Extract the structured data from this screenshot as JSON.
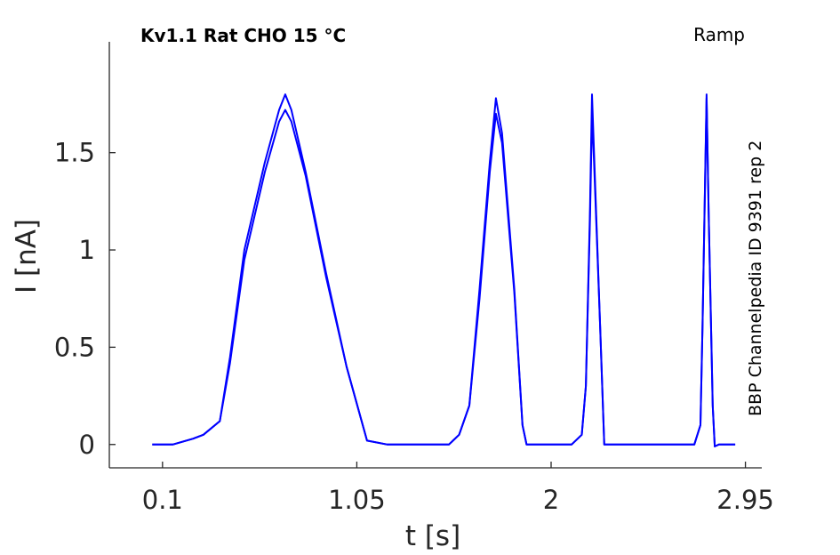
{
  "chart_data": {
    "type": "line",
    "title": "Kv1.1  Rat  CHO  15 °C",
    "annotation_right": "Ramp",
    "side_label": "BBP Channelpedia ID 9391 rep 2",
    "xlabel": "t [s]",
    "ylabel": "I [nA]",
    "xlim": [
      -0.16,
      3.03
    ],
    "ylim": [
      -0.12,
      2.07
    ],
    "xticks": [
      0.1,
      1.05,
      2,
      2.95
    ],
    "xtick_labels": [
      "0.1",
      "1.05",
      "2",
      "2.95"
    ],
    "yticks": [
      0,
      0.5,
      1,
      1.5
    ],
    "ytick_labels": [
      "0",
      "0.5",
      "1",
      "1.5"
    ],
    "line_color": "#0000ff",
    "grid": false,
    "legend": "none",
    "series": [
      {
        "values": [
          [
            0.05,
            0.0
          ],
          [
            0.15,
            0.0
          ],
          [
            0.25,
            0.03
          ],
          [
            0.3,
            0.05
          ],
          [
            0.38,
            0.12
          ],
          [
            0.43,
            0.45
          ],
          [
            0.5,
            1.0
          ],
          [
            0.6,
            1.45
          ],
          [
            0.67,
            1.72
          ],
          [
            0.7,
            1.8
          ],
          [
            0.73,
            1.72
          ],
          [
            0.8,
            1.4
          ],
          [
            0.9,
            0.88
          ],
          [
            1.0,
            0.4
          ],
          [
            1.1,
            0.02
          ],
          [
            1.2,
            0.0
          ],
          [
            1.5,
            0.0
          ],
          [
            1.55,
            0.05
          ],
          [
            1.6,
            0.2
          ],
          [
            1.65,
            0.8
          ],
          [
            1.7,
            1.45
          ],
          [
            1.73,
            1.78
          ],
          [
            1.76,
            1.6
          ],
          [
            1.82,
            0.8
          ],
          [
            1.86,
            0.1
          ],
          [
            1.88,
            0.0
          ],
          [
            2.0,
            0.0
          ],
          [
            2.1,
            0.0
          ],
          [
            2.15,
            0.05
          ],
          [
            2.17,
            0.3
          ],
          [
            2.19,
            1.2
          ],
          [
            2.2,
            1.8
          ],
          [
            2.21,
            1.5
          ],
          [
            2.24,
            0.6
          ],
          [
            2.26,
            0.0
          ],
          [
            2.35,
            0.0
          ],
          [
            2.7,
            0.0
          ],
          [
            2.73,
            0.1
          ],
          [
            2.74,
            0.6
          ],
          [
            2.76,
            1.8
          ],
          [
            2.77,
            1.2
          ],
          [
            2.79,
            0.2
          ],
          [
            2.8,
            -0.01
          ],
          [
            2.82,
            0.0
          ],
          [
            2.9,
            0.0
          ]
        ]
      },
      {
        "values": [
          [
            0.05,
            0.0
          ],
          [
            0.15,
            0.0
          ],
          [
            0.25,
            0.03
          ],
          [
            0.3,
            0.05
          ],
          [
            0.38,
            0.12
          ],
          [
            0.43,
            0.42
          ],
          [
            0.5,
            0.95
          ],
          [
            0.6,
            1.4
          ],
          [
            0.67,
            1.66
          ],
          [
            0.7,
            1.72
          ],
          [
            0.73,
            1.66
          ],
          [
            0.8,
            1.38
          ],
          [
            0.9,
            0.86
          ],
          [
            1.0,
            0.4
          ],
          [
            1.1,
            0.02
          ],
          [
            1.2,
            0.0
          ],
          [
            1.5,
            0.0
          ],
          [
            1.55,
            0.05
          ],
          [
            1.6,
            0.2
          ],
          [
            1.65,
            0.75
          ],
          [
            1.7,
            1.4
          ],
          [
            1.73,
            1.7
          ],
          [
            1.76,
            1.55
          ],
          [
            1.82,
            0.78
          ],
          [
            1.86,
            0.1
          ],
          [
            1.88,
            0.0
          ],
          [
            2.0,
            0.0
          ],
          [
            2.1,
            0.0
          ],
          [
            2.15,
            0.05
          ],
          [
            2.17,
            0.3
          ],
          [
            2.19,
            1.15
          ],
          [
            2.2,
            1.7
          ],
          [
            2.21,
            1.45
          ],
          [
            2.24,
            0.6
          ],
          [
            2.26,
            0.0
          ],
          [
            2.35,
            0.0
          ],
          [
            2.7,
            0.0
          ],
          [
            2.73,
            0.1
          ],
          [
            2.74,
            0.6
          ],
          [
            2.76,
            1.78
          ],
          [
            2.77,
            1.2
          ],
          [
            2.79,
            0.2
          ],
          [
            2.8,
            -0.01
          ],
          [
            2.82,
            0.0
          ],
          [
            2.9,
            0.0
          ]
        ]
      }
    ]
  }
}
